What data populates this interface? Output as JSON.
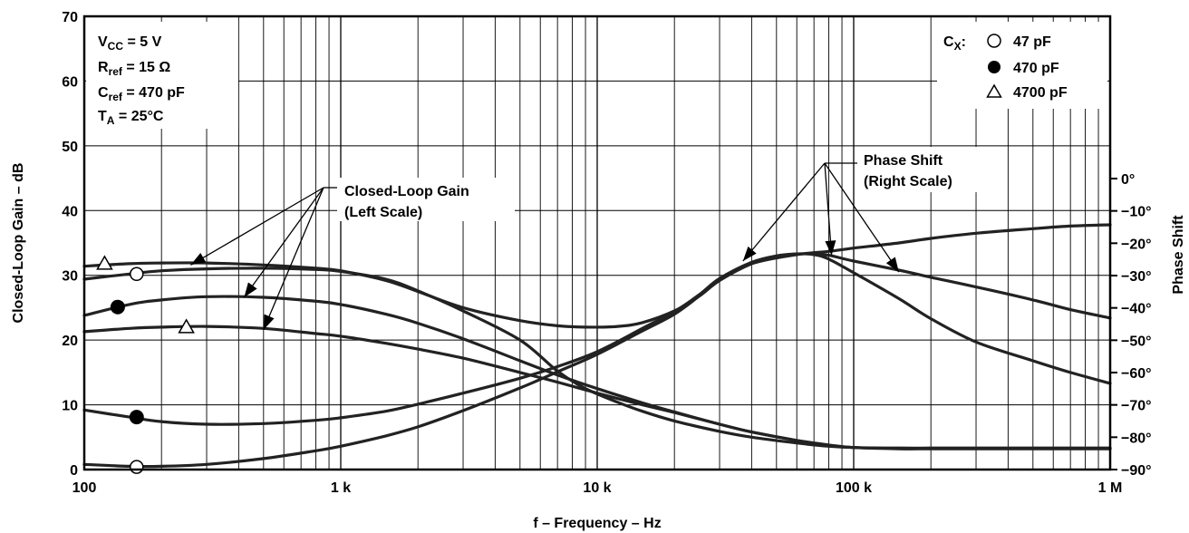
{
  "chart_data": {
    "type": "line",
    "xlabel": "f – Frequency – Hz",
    "ylabel_left": "Closed-Loop Gain – dB",
    "ylabel_right": "Phase Shift",
    "x_scale": "log",
    "xlim": [
      100,
      1000000
    ],
    "ylim_left": [
      0,
      70
    ],
    "ylim_right": [
      -90,
      0
    ],
    "grid": true,
    "x_ticks": [
      {
        "value": 100,
        "label": "100"
      },
      {
        "value": 1000,
        "label": "1 k"
      },
      {
        "value": 10000,
        "label": "10 k"
      },
      {
        "value": 100000,
        "label": "100 k"
      },
      {
        "value": 1000000,
        "label": "1 M"
      }
    ],
    "y_left_ticks": [
      {
        "value": 0,
        "label": "0"
      },
      {
        "value": 10,
        "label": "10"
      },
      {
        "value": 20,
        "label": "20"
      },
      {
        "value": 30,
        "label": "30"
      },
      {
        "value": 40,
        "label": "40"
      },
      {
        "value": 50,
        "label": "50"
      },
      {
        "value": 60,
        "label": "60"
      },
      {
        "value": 70,
        "label": "70"
      }
    ],
    "y_right_ticks": [
      {
        "value": 0,
        "label": "0°"
      },
      {
        "value": -10,
        "label": "−10°"
      },
      {
        "value": -20,
        "label": "−20°"
      },
      {
        "value": -30,
        "label": "−30°"
      },
      {
        "value": -40,
        "label": "−40°"
      },
      {
        "value": -50,
        "label": "−50°"
      },
      {
        "value": -60,
        "label": "−60°"
      },
      {
        "value": -70,
        "label": "−70°"
      },
      {
        "value": -80,
        "label": "−80°"
      },
      {
        "value": -90,
        "label": "−90°"
      }
    ],
    "conditions": {
      "line1": {
        "main": "V",
        "sub": "CC",
        "rest": " = 5 V"
      },
      "line2": {
        "main": "R",
        "sub": "ref",
        "rest": " = 15 Ω"
      },
      "line3": {
        "main": "C",
        "sub": "ref",
        "rest": " = 470 pF"
      },
      "line4": {
        "main": "T",
        "sub": "A",
        "rest": " = 25°C"
      }
    },
    "legend": {
      "position": "top-right",
      "title_main": "C",
      "title_sub": "X",
      "title_rest": ":",
      "entries": [
        {
          "marker": "open-circle",
          "label": "47 pF"
        },
        {
          "marker": "filled-circle",
          "label": "470 pF"
        },
        {
          "marker": "open-triangle",
          "label": "4700 pF"
        }
      ]
    },
    "annotations": {
      "gain": [
        "Closed-Loop Gain",
        "(Left Scale)"
      ],
      "phase": [
        "Phase Shift",
        "(Right Scale)"
      ]
    },
    "series": [
      {
        "axis": "left",
        "quantity": "gain",
        "cx": "4700 pF",
        "marker": "open-triangle",
        "x": [
          100,
          150,
          200,
          300,
          500,
          800,
          1000,
          1500,
          2000,
          3000,
          5000,
          7000,
          10000,
          15000,
          20000,
          30000,
          40000,
          60000,
          80000,
          100000,
          150000,
          200000,
          300000,
          500000,
          700000,
          1000000
        ],
        "y": [
          21.3,
          21.8,
          22.0,
          22.1,
          21.8,
          21.0,
          20.6,
          19.5,
          18.6,
          17.2,
          15.0,
          13.5,
          11.8,
          10.0,
          8.8,
          7.0,
          5.8,
          4.5,
          3.7,
          3.4,
          3.2,
          3.2,
          3.2,
          3.2,
          3.2,
          3.2
        ]
      },
      {
        "axis": "left",
        "quantity": "gain",
        "cx": "470 pF",
        "marker": "filled-circle",
        "x": [
          100,
          150,
          200,
          300,
          500,
          800,
          1000,
          1500,
          2000,
          3000,
          5000,
          7000,
          10000,
          15000,
          20000,
          30000,
          40000,
          60000,
          80000,
          100000,
          150000,
          200000,
          300000,
          500000,
          700000,
          1000000
        ],
        "y": [
          23.8,
          25.5,
          26.2,
          26.7,
          26.6,
          26.0,
          25.5,
          24.0,
          22.6,
          20.2,
          16.8,
          14.6,
          12.5,
          10.3,
          8.9,
          7.0,
          5.8,
          4.5,
          3.8,
          3.4,
          3.3,
          3.3,
          3.3,
          3.3,
          3.3,
          3.3
        ]
      },
      {
        "axis": "left",
        "quantity": "gain",
        "cx": "47 pF",
        "marker": "open-circle",
        "x": [
          100,
          150,
          200,
          300,
          500,
          800,
          1000,
          1500,
          2000,
          3000,
          5000,
          7000,
          9000,
          12000,
          15000,
          20000,
          30000,
          40000,
          60000,
          80000,
          100000,
          150000,
          200000,
          300000,
          500000,
          700000,
          1000000
        ],
        "y": [
          29.4,
          30.2,
          30.7,
          31.0,
          31.1,
          30.9,
          30.6,
          29.4,
          27.6,
          24.5,
          20.0,
          15.2,
          12.5,
          10.4,
          9.0,
          7.5,
          5.9,
          5.0,
          4.1,
          3.6,
          3.4,
          3.3,
          3.3,
          3.3,
          3.3,
          3.3,
          3.3
        ]
      },
      {
        "axis": "left",
        "quantity": "phase",
        "cx": "47 pF",
        "marker": "open-circle",
        "x": [
          100,
          150,
          200,
          300,
          500,
          800,
          1000,
          1500,
          2000,
          3000,
          5000,
          7000,
          10000,
          15000,
          20000,
          25000,
          30000,
          40000,
          60000,
          80000,
          100000,
          150000,
          200000,
          300000,
          500000,
          700000,
          1000000
        ],
        "y": [
          0.8,
          0.5,
          0.5,
          0.8,
          1.7,
          2.9,
          3.6,
          5.2,
          6.6,
          9.1,
          12.6,
          15.1,
          17.8,
          21.4,
          24.0,
          26.8,
          29.2,
          31.8,
          33.2,
          33.7,
          34.2,
          35.0,
          35.7,
          36.5,
          37.2,
          37.6,
          37.8
        ]
      },
      {
        "axis": "left",
        "quantity": "phase",
        "cx": "470 pF",
        "marker": "filled-circle",
        "x": [
          100,
          150,
          200,
          300,
          500,
          800,
          1000,
          1500,
          2000,
          3000,
          5000,
          7000,
          10000,
          15000,
          20000,
          25000,
          30000,
          40000,
          50000,
          60000,
          70000,
          80000,
          100000,
          150000,
          200000,
          300000,
          500000,
          700000,
          1000000
        ],
        "y": [
          9.2,
          8.1,
          7.4,
          7.0,
          7.1,
          7.6,
          8.0,
          9.0,
          10.1,
          11.8,
          14.1,
          15.9,
          18.2,
          21.8,
          24.4,
          27.0,
          29.5,
          32.0,
          33.0,
          33.3,
          33.3,
          33.1,
          32.2,
          30.8,
          29.7,
          28.2,
          26.2,
          24.7,
          23.4
        ]
      },
      {
        "axis": "left",
        "quantity": "phase",
        "cx": "4700 pF",
        "marker": "open-triangle",
        "x": [
          100,
          150,
          200,
          300,
          500,
          800,
          1000,
          1500,
          2000,
          3000,
          5000,
          7000,
          9000,
          12000,
          15000,
          20000,
          25000,
          30000,
          40000,
          50000,
          60000,
          70000,
          80000,
          100000,
          150000,
          200000,
          300000,
          500000,
          700000,
          1000000
        ],
        "y": [
          31.4,
          31.8,
          31.9,
          31.9,
          31.6,
          31.1,
          30.7,
          29.2,
          27.5,
          25.0,
          23.0,
          22.2,
          22.0,
          22.1,
          22.7,
          24.5,
          26.8,
          29.2,
          31.8,
          32.9,
          33.3,
          33.2,
          32.5,
          30.4,
          26.4,
          23.3,
          19.7,
          16.8,
          15.0,
          13.3
        ]
      }
    ],
    "markers": [
      {
        "type": "open-triangle",
        "x": 120,
        "y": 31.8
      },
      {
        "type": "open-circle",
        "x": 160,
        "y": 30.2
      },
      {
        "type": "filled-circle",
        "x": 135,
        "y": 25.1
      },
      {
        "type": "open-triangle",
        "x": 250,
        "y": 22.0
      },
      {
        "type": "filled-circle",
        "x": 160,
        "y": 8.1
      },
      {
        "type": "open-circle",
        "x": 160,
        "y": 0.4
      }
    ]
  }
}
